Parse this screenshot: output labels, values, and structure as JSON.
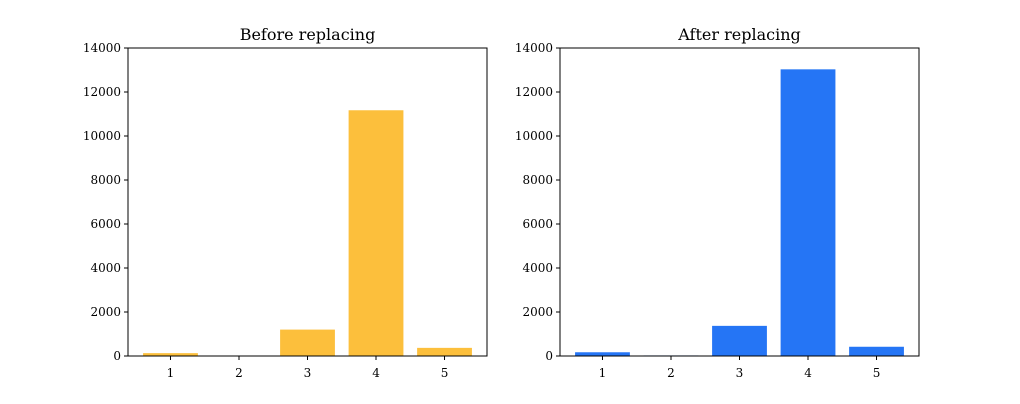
{
  "chart_data": [
    {
      "type": "bar",
      "title": "Before replacing",
      "xlabel": "",
      "ylabel": "",
      "categories": [
        "1",
        "2",
        "3",
        "4",
        "5"
      ],
      "values": [
        130,
        20,
        1200,
        11170,
        370
      ],
      "ylim": [
        0,
        14000
      ],
      "yticks": [
        "0",
        "2000",
        "4000",
        "6000",
        "8000",
        "10000",
        "12000",
        "14000"
      ],
      "color": "#fcbf3c",
      "grid": false
    },
    {
      "type": "bar",
      "title": "After replacing",
      "xlabel": "",
      "ylabel": "",
      "categories": [
        "1",
        "2",
        "3",
        "4",
        "5"
      ],
      "values": [
        170,
        25,
        1370,
        13030,
        420
      ],
      "ylim": [
        0,
        14000
      ],
      "yticks": [
        "0",
        "2000",
        "4000",
        "6000",
        "8000",
        "10000",
        "12000",
        "14000"
      ],
      "color": "#2575f5",
      "grid": false
    }
  ]
}
